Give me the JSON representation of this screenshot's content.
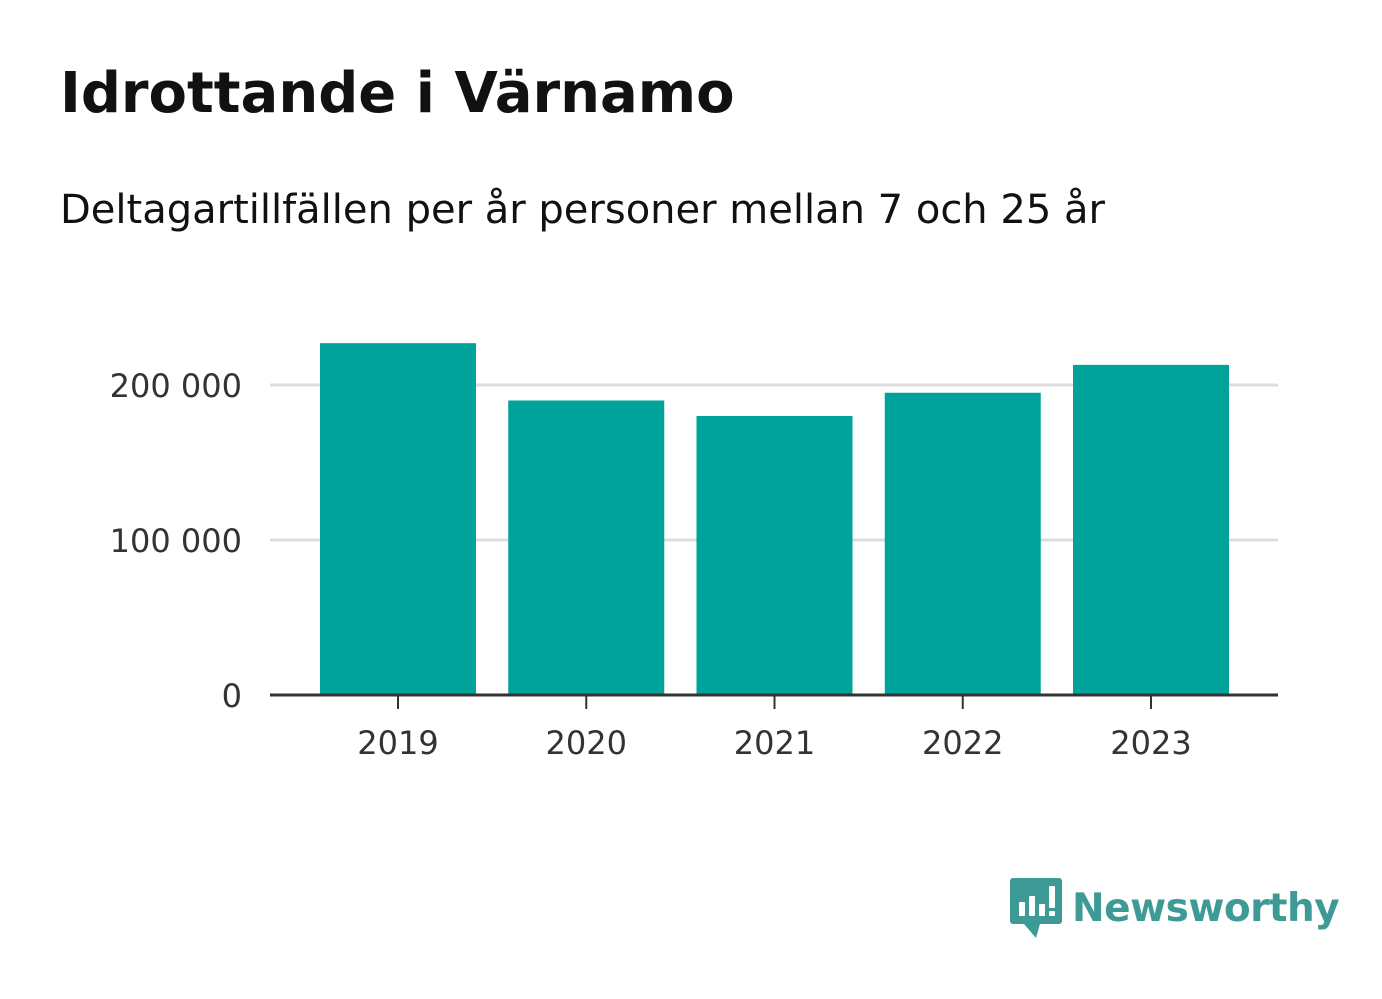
{
  "header": {
    "title": "Idrottande i Värnamo",
    "subtitle": "Deltagartillfällen per år personer mellan 7 och 25 år"
  },
  "branding": {
    "name": "Newsworthy",
    "icon": "bar-chart-speech-bubble-icon",
    "color": "#3e9a94"
  },
  "colors": {
    "bar": "#00a39a",
    "grid": "#dddddd",
    "axis": "#333333"
  },
  "chart_data": {
    "type": "bar",
    "title": "Idrottande i Värnamo",
    "subtitle": "Deltagartillfällen per år personer mellan 7 och 25 år",
    "categories": [
      "2019",
      "2020",
      "2021",
      "2022",
      "2023"
    ],
    "values": [
      227000,
      190000,
      180000,
      195000,
      213000
    ],
    "yticks": [
      0,
      100000,
      200000
    ],
    "ytick_labels": [
      "0",
      "100 000",
      "200 000"
    ],
    "ylim": [
      0,
      227000
    ],
    "grid": true,
    "legend": "none"
  }
}
